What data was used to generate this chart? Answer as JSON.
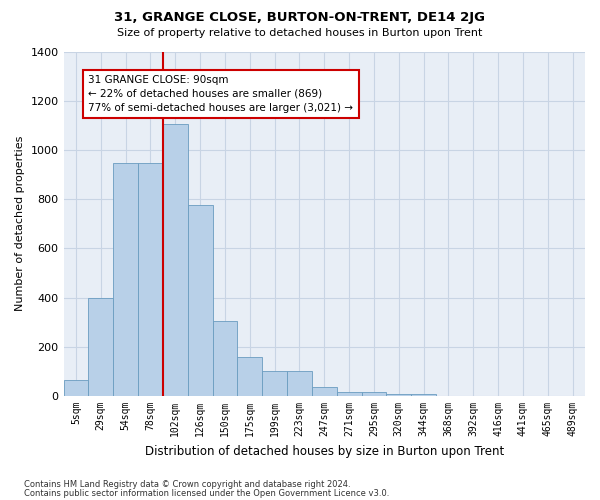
{
  "title": "31, GRANGE CLOSE, BURTON-ON-TRENT, DE14 2JG",
  "subtitle": "Size of property relative to detached houses in Burton upon Trent",
  "xlabel": "Distribution of detached houses by size in Burton upon Trent",
  "ylabel": "Number of detached properties",
  "bar_values": [
    65,
    400,
    945,
    945,
    1105,
    775,
    305,
    160,
    100,
    100,
    35,
    18,
    18,
    10,
    10,
    0,
    0,
    0,
    0,
    0,
    0
  ],
  "bin_labels": [
    "5sqm",
    "29sqm",
    "54sqm",
    "78sqm",
    "102sqm",
    "126sqm",
    "150sqm",
    "175sqm",
    "199sqm",
    "223sqm",
    "247sqm",
    "271sqm",
    "295sqm",
    "320sqm",
    "344sqm",
    "368sqm",
    "392sqm",
    "416sqm",
    "441sqm",
    "465sqm",
    "489sqm"
  ],
  "bar_color": "#b8d0e8",
  "bar_edge_color": "#6a9cc0",
  "grid_color": "#c8d4e4",
  "bg_color": "#e8eef6",
  "annotation_text": "31 GRANGE CLOSE: 90sqm\n← 22% of detached houses are smaller (869)\n77% of semi-detached houses are larger (3,021) →",
  "vline_x": 3.5,
  "vline_color": "#cc0000",
  "annotation_box_color": "#cc0000",
  "ylim": [
    0,
    1400
  ],
  "yticks": [
    0,
    200,
    400,
    600,
    800,
    1000,
    1200,
    1400
  ],
  "footer1": "Contains HM Land Registry data © Crown copyright and database right 2024.",
  "footer2": "Contains public sector information licensed under the Open Government Licence v3.0."
}
